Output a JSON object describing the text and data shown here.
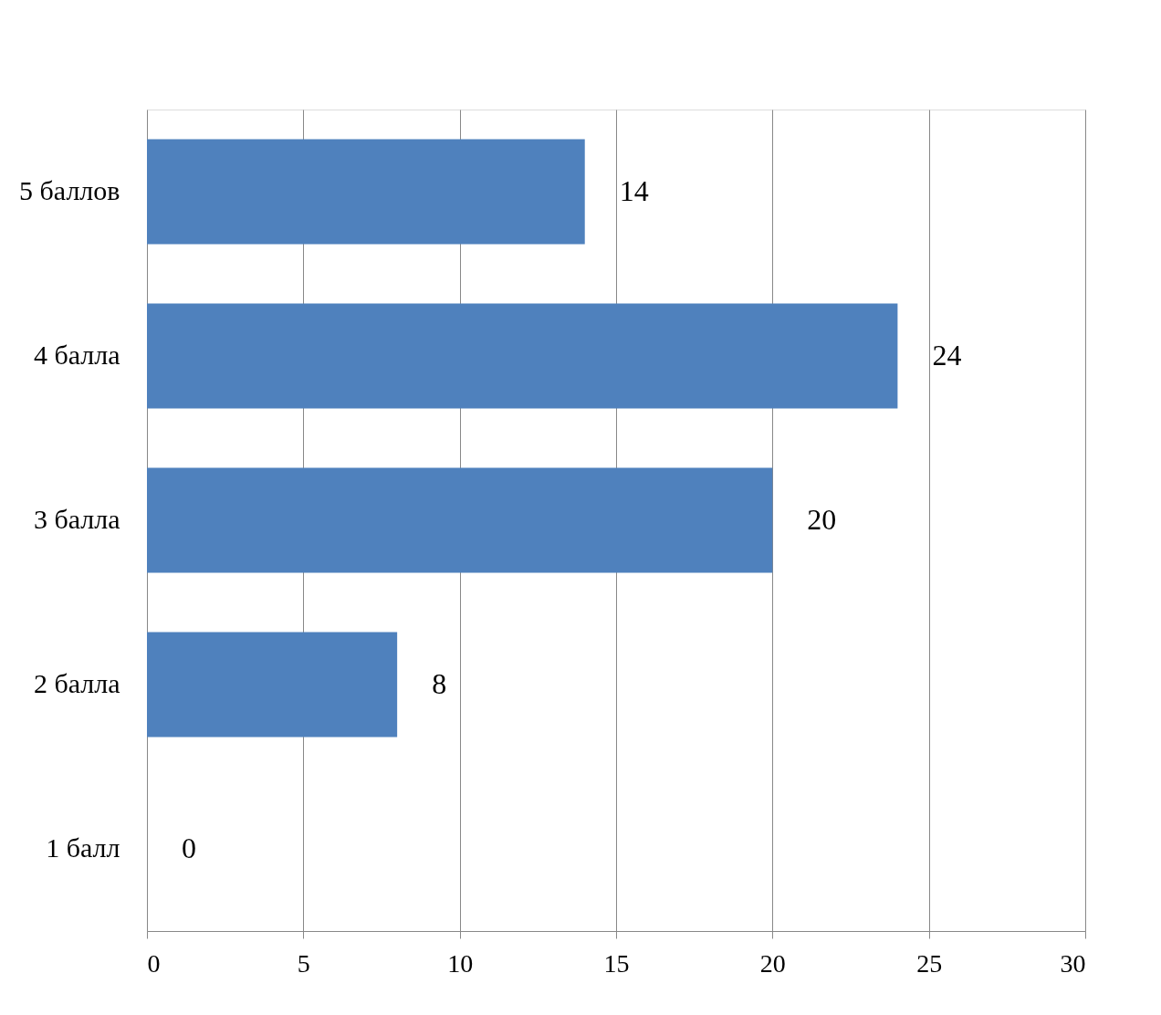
{
  "chart_data": {
    "type": "bar",
    "orientation": "horizontal",
    "categories": [
      "5 баллов",
      "4 балла",
      "3 балла",
      "2 балла",
      "1 балл"
    ],
    "values": [
      14,
      24,
      20,
      8,
      0
    ],
    "color": "#4f81bd",
    "xlim": [
      0,
      30
    ],
    "xticks": [
      0,
      5,
      10,
      15,
      20,
      25,
      30
    ],
    "grid": "x",
    "data_labels": true
  }
}
